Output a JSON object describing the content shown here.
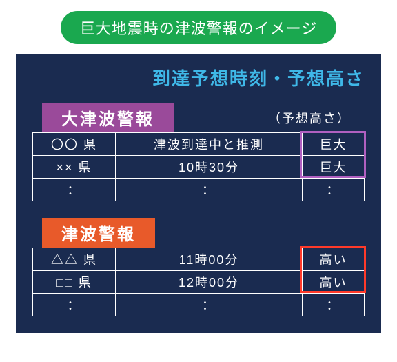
{
  "title": "巨大地震時の津波警報のイメージ",
  "subtitle": "到達予想時刻・予想高さ",
  "note": "（予想高さ）",
  "colors": {
    "pill_bg": "#1aa84f",
    "panel_bg": "#1a2b50",
    "subtitle_color": "#3fb8e8",
    "purple_tab": "#9a4a9a",
    "orange_tab": "#e85a2a",
    "purple_box": "#b060c0",
    "red_box": "#ff3a2a",
    "text": "#ffffff",
    "border": "#ffffff"
  },
  "sections": [
    {
      "label": "大津波警報",
      "tab_color": "purple",
      "highlight_color": "purple",
      "rows": [
        {
          "pref": "〇〇 県",
          "time": "津波到達中と推測",
          "height": "巨大"
        },
        {
          "pref": "×× 県",
          "time": "10時30分",
          "height": "巨大"
        },
        {
          "pref": "：",
          "time": "：",
          "height": "："
        }
      ]
    },
    {
      "label": "津波警報",
      "tab_color": "orange",
      "highlight_color": "red",
      "rows": [
        {
          "pref": "△△ 県",
          "time": "11時00分",
          "height": "高い"
        },
        {
          "pref": "□□ 県",
          "time": "12時00分",
          "height": "高い"
        },
        {
          "pref": "：",
          "time": "：",
          "height": "："
        }
      ]
    }
  ]
}
